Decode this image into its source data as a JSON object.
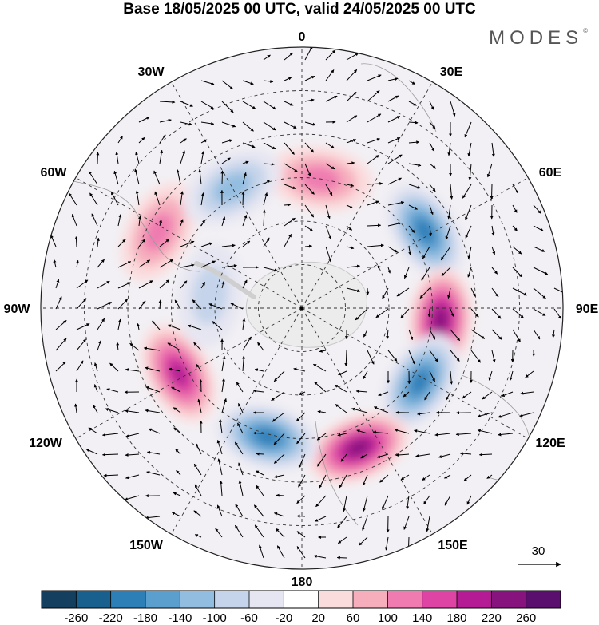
{
  "title": "Base 18/05/2025 00 UTC, valid 24/05/2025 00 UTC",
  "brand": "MODES",
  "brand_mark": "©",
  "longitude_labels": [
    "0",
    "30E",
    "60E",
    "90E",
    "120E",
    "150E",
    "180",
    "150W",
    "120W",
    "90W",
    "60W",
    "30W"
  ],
  "reference_vector": {
    "label": "30",
    "value": 30
  },
  "colorbar": {
    "ticks": [
      "-260",
      "-220",
      "-180",
      "-140",
      "-100",
      "-60",
      "-20",
      "20",
      "60",
      "100",
      "140",
      "180",
      "220",
      "260"
    ],
    "colors": [
      "#143f5e",
      "#19608f",
      "#2d7fb8",
      "#5b9fcf",
      "#93bde0",
      "#c5d4ea",
      "#e6e6f2",
      "#ffffff",
      "#fbdcdd",
      "#f6aebd",
      "#ef7bb0",
      "#dd44a3",
      "#b41b94",
      "#87137f",
      "#5a0f6e"
    ]
  },
  "anomaly_centers": [
    {
      "sign": "positive",
      "lon": 8,
      "lat": -45,
      "level": 2
    },
    {
      "sign": "negative",
      "lon": 58,
      "lat": -40,
      "level": 4
    },
    {
      "sign": "positive",
      "lon": 95,
      "lat": -42,
      "level": 5
    },
    {
      "sign": "negative",
      "lon": 122,
      "lat": -42,
      "level": 4
    },
    {
      "sign": "positive",
      "lon": 158,
      "lat": -38,
      "level": 5
    },
    {
      "sign": "negative",
      "lon": -165,
      "lat": -44,
      "level": 4
    },
    {
      "sign": "positive",
      "lon": -118,
      "lat": -42,
      "level": 4
    },
    {
      "sign": "negative",
      "lon": -82,
      "lat": -58,
      "level": 1
    },
    {
      "sign": "positive",
      "lon": -62,
      "lat": -34,
      "level": 2
    },
    {
      "sign": "negative",
      "lon": -30,
      "lat": -42,
      "level": 2
    }
  ]
}
